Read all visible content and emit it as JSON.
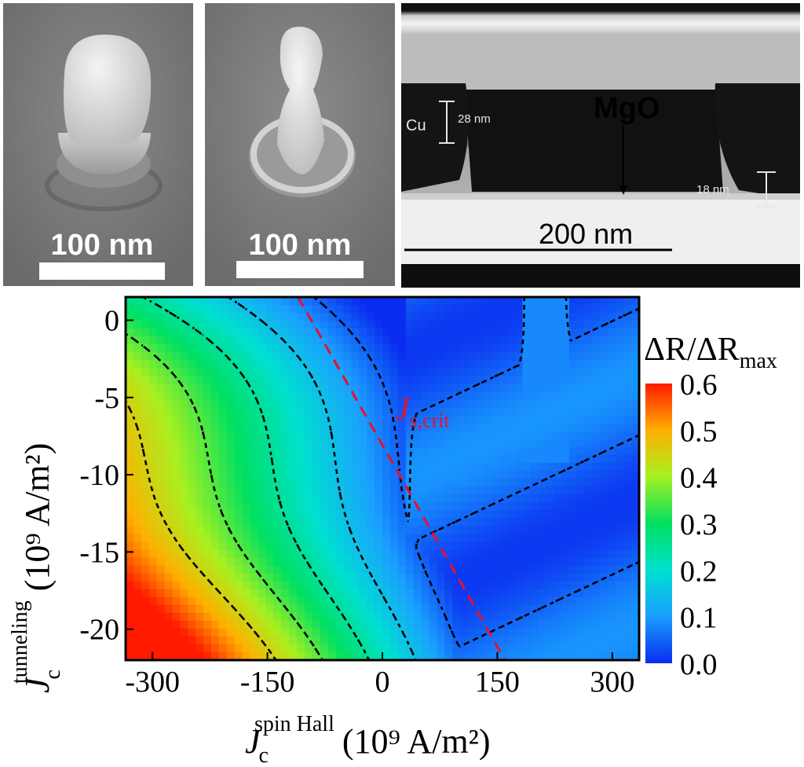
{
  "sem_panels": [
    {
      "scale_label": "100 nm"
    },
    {
      "scale_label": "100 nm"
    }
  ],
  "tem_panel": {
    "material_label": "MgO",
    "electrode_label": "Cu",
    "thickness_top": "28 nm",
    "thickness_bottom": "18 nm",
    "scale_label": "200 nm"
  },
  "colors": {
    "low": "#0a2cf0",
    "mid": "#00e080",
    "high": "#ff1a00",
    "annotation": "#e8102a",
    "contour": "#000000"
  },
  "chart_data": {
    "type": "heatmap",
    "x_axis": {
      "symbol": "J",
      "subscript": "c",
      "superscript": "spin Hall",
      "units": "(10⁹ A/m²)",
      "range": [
        -335,
        335
      ],
      "ticks": [
        -300,
        -150,
        0,
        150,
        300
      ]
    },
    "y_axis": {
      "symbol": "J",
      "subscript": "c",
      "superscript": "tunneling",
      "units": "(10⁹ A/m²)",
      "range": [
        -22,
        1.5
      ],
      "ticks": [
        0,
        -5,
        -10,
        -15,
        -20
      ]
    },
    "colorbar": {
      "title_parts": [
        "ΔR/ΔR",
        "max"
      ],
      "range": [
        0.0,
        0.6
      ],
      "ticks": [
        "0.0",
        "0.1",
        "0.2",
        "0.3",
        "0.4",
        "0.5",
        "0.6"
      ]
    },
    "annotation": {
      "label": "J",
      "sub": "s,crit",
      "line": [
        [
          -110,
          1.5
        ],
        [
          160,
          -22
        ]
      ]
    },
    "contour_levels": [
      0.05,
      0.15,
      0.25,
      0.35,
      0.45
    ]
  }
}
